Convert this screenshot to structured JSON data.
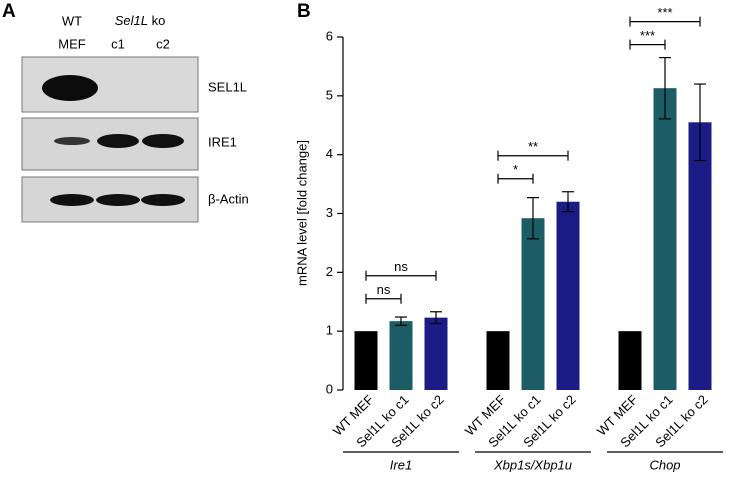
{
  "panel_a": {
    "label": "A",
    "header": {
      "wt_line1": "WT",
      "wt_line2": "MEF",
      "ko_gene": "Sel1L",
      "ko_suffix": "ko",
      "clone1": "c1",
      "clone2": "c2"
    },
    "rows": [
      "SEL1L",
      "IRE1",
      "β-Actin"
    ]
  },
  "chart_data": {
    "type": "bar",
    "panel_label": "B",
    "y_label": "mRNA level [fold change]",
    "categories": [
      "Ire1",
      "Xbp1s/Xbp1u",
      "Chop"
    ],
    "series": [
      {
        "name": "WT MEF",
        "color": "#000000",
        "values": [
          1,
          1,
          1
        ],
        "errors": [
          0,
          0,
          0
        ]
      },
      {
        "name": "Sel1L ko c1",
        "color": "#1c5c64",
        "values": [
          1.17,
          2.92,
          5.13
        ],
        "errors": [
          0.07,
          0.35,
          0.52
        ]
      },
      {
        "name": "Sel1L ko c2",
        "color": "#1c1c86",
        "values": [
          1.23,
          3.2,
          4.55
        ],
        "errors": [
          0.1,
          0.17,
          0.65
        ]
      }
    ],
    "ylim": [
      0,
      6
    ],
    "yticks": [
      0,
      1,
      2,
      3,
      4,
      5,
      6
    ],
    "annotations": [
      {
        "category": 0,
        "from": 0,
        "to": 1,
        "label": "ns"
      },
      {
        "category": 0,
        "from": 0,
        "to": 2,
        "label": "ns"
      },
      {
        "category": 1,
        "from": 0,
        "to": 1,
        "label": "*"
      },
      {
        "category": 1,
        "from": 0,
        "to": 2,
        "label": "**"
      },
      {
        "category": 2,
        "from": 0,
        "to": 1,
        "label": "***"
      },
      {
        "category": 2,
        "from": 0,
        "to": 2,
        "label": "***"
      }
    ]
  }
}
